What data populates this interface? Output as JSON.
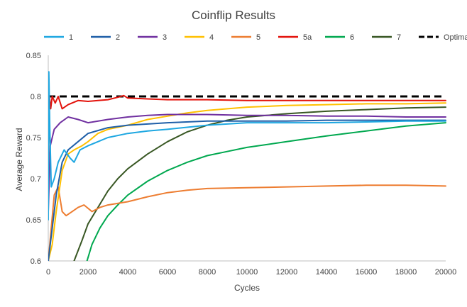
{
  "chart_data": {
    "type": "line",
    "title": "Coinflip Results",
    "xlabel": "Cycles",
    "ylabel": "Average Reward",
    "xlim": [
      0,
      20000
    ],
    "ylim": [
      0.6,
      0.85
    ],
    "xticks": [
      0,
      2000,
      4000,
      6000,
      8000,
      10000,
      12000,
      14000,
      16000,
      18000,
      20000
    ],
    "yticks": [
      0.6,
      0.65,
      0.7,
      0.75,
      0.8,
      0.85
    ],
    "xtick_labels": [
      "0",
      "2000",
      "4000",
      "6000",
      "8000",
      "10000",
      "12000",
      "14000",
      "16000",
      "18000",
      "20000"
    ],
    "ytick_labels": [
      "0.6",
      "0.65",
      "0.7",
      "0.75",
      "0.8",
      "0.85"
    ],
    "grid": false,
    "legend_position": "top",
    "series": [
      {
        "name": "1",
        "color": "#1ea7e1",
        "dash": false,
        "points": [
          [
            0,
            0.65
          ],
          [
            30,
            0.83
          ],
          [
            80,
            0.76
          ],
          [
            150,
            0.69
          ],
          [
            300,
            0.7
          ],
          [
            500,
            0.72
          ],
          [
            800,
            0.735
          ],
          [
            1100,
            0.725
          ],
          [
            1300,
            0.72
          ],
          [
            1600,
            0.735
          ],
          [
            2000,
            0.74
          ],
          [
            2500,
            0.745
          ],
          [
            3000,
            0.75
          ],
          [
            4000,
            0.755
          ],
          [
            5000,
            0.758
          ],
          [
            6000,
            0.76
          ],
          [
            8000,
            0.765
          ],
          [
            10000,
            0.768
          ],
          [
            12000,
            0.768
          ],
          [
            14000,
            0.768
          ],
          [
            16000,
            0.769
          ],
          [
            18000,
            0.77
          ],
          [
            20000,
            0.77
          ]
        ]
      },
      {
        "name": "2",
        "color": "#1f5fa8",
        "dash": false,
        "points": [
          [
            0,
            0.6
          ],
          [
            100,
            0.62
          ],
          [
            200,
            0.64
          ],
          [
            400,
            0.68
          ],
          [
            700,
            0.72
          ],
          [
            1000,
            0.735
          ],
          [
            1500,
            0.745
          ],
          [
            2000,
            0.755
          ],
          [
            3000,
            0.762
          ],
          [
            4000,
            0.765
          ],
          [
            6000,
            0.768
          ],
          [
            8000,
            0.77
          ],
          [
            10000,
            0.77
          ],
          [
            12000,
            0.77
          ],
          [
            14000,
            0.771
          ],
          [
            16000,
            0.771
          ],
          [
            18000,
            0.771
          ],
          [
            20000,
            0.771
          ]
        ]
      },
      {
        "name": "3",
        "color": "#7030a0",
        "dash": false,
        "points": [
          [
            0,
            0.66
          ],
          [
            100,
            0.74
          ],
          [
            300,
            0.76
          ],
          [
            600,
            0.768
          ],
          [
            1000,
            0.775
          ],
          [
            1500,
            0.772
          ],
          [
            2000,
            0.768
          ],
          [
            3000,
            0.772
          ],
          [
            4000,
            0.775
          ],
          [
            5000,
            0.777
          ],
          [
            6000,
            0.778
          ],
          [
            8000,
            0.778
          ],
          [
            10000,
            0.777
          ],
          [
            12000,
            0.777
          ],
          [
            14000,
            0.776
          ],
          [
            16000,
            0.776
          ],
          [
            18000,
            0.775
          ],
          [
            20000,
            0.775
          ]
        ]
      },
      {
        "name": "4",
        "color": "#ffc000",
        "dash": false,
        "points": [
          [
            0,
            0.6
          ],
          [
            200,
            0.62
          ],
          [
            400,
            0.66
          ],
          [
            700,
            0.71
          ],
          [
            1000,
            0.73
          ],
          [
            1300,
            0.735
          ],
          [
            1700,
            0.74
          ],
          [
            2000,
            0.745
          ],
          [
            2500,
            0.755
          ],
          [
            3000,
            0.76
          ],
          [
            4000,
            0.765
          ],
          [
            5000,
            0.772
          ],
          [
            6000,
            0.776
          ],
          [
            7000,
            0.78
          ],
          [
            8000,
            0.783
          ],
          [
            10000,
            0.787
          ],
          [
            12000,
            0.789
          ],
          [
            14000,
            0.79
          ],
          [
            16000,
            0.791
          ],
          [
            18000,
            0.791
          ],
          [
            20000,
            0.792
          ]
        ]
      },
      {
        "name": "5",
        "color": "#ed7d31",
        "dash": false,
        "points": [
          [
            0,
            0.6
          ],
          [
            150,
            0.64
          ],
          [
            300,
            0.68
          ],
          [
            500,
            0.69
          ],
          [
            700,
            0.66
          ],
          [
            900,
            0.655
          ],
          [
            1200,
            0.66
          ],
          [
            1500,
            0.665
          ],
          [
            1800,
            0.668
          ],
          [
            2200,
            0.66
          ],
          [
            2600,
            0.665
          ],
          [
            3000,
            0.668
          ],
          [
            4000,
            0.672
          ],
          [
            5000,
            0.678
          ],
          [
            6000,
            0.683
          ],
          [
            7000,
            0.686
          ],
          [
            8000,
            0.688
          ],
          [
            10000,
            0.689
          ],
          [
            12000,
            0.69
          ],
          [
            14000,
            0.691
          ],
          [
            16000,
            0.692
          ],
          [
            18000,
            0.692
          ],
          [
            20000,
            0.691
          ]
        ]
      },
      {
        "name": "5a",
        "color": "#e3120b",
        "dash": false,
        "points": [
          [
            0,
            0.72
          ],
          [
            60,
            0.8
          ],
          [
            120,
            0.785
          ],
          [
            200,
            0.8
          ],
          [
            350,
            0.792
          ],
          [
            500,
            0.8
          ],
          [
            700,
            0.785
          ],
          [
            1000,
            0.79
          ],
          [
            1500,
            0.795
          ],
          [
            2000,
            0.794
          ],
          [
            2500,
            0.795
          ],
          [
            3000,
            0.796
          ],
          [
            3500,
            0.799
          ],
          [
            3800,
            0.801
          ],
          [
            4000,
            0.798
          ],
          [
            5000,
            0.797
          ],
          [
            6000,
            0.796
          ],
          [
            8000,
            0.796
          ],
          [
            10000,
            0.795
          ],
          [
            12000,
            0.795
          ],
          [
            14000,
            0.795
          ],
          [
            16000,
            0.795
          ],
          [
            18000,
            0.795
          ],
          [
            20000,
            0.795
          ]
        ]
      },
      {
        "name": "6",
        "color": "#00a84f",
        "dash": false,
        "points": [
          [
            1950,
            0.6
          ],
          [
            2200,
            0.62
          ],
          [
            2600,
            0.64
          ],
          [
            3000,
            0.655
          ],
          [
            3500,
            0.668
          ],
          [
            4000,
            0.68
          ],
          [
            5000,
            0.697
          ],
          [
            6000,
            0.71
          ],
          [
            7000,
            0.72
          ],
          [
            8000,
            0.728
          ],
          [
            9000,
            0.733
          ],
          [
            10000,
            0.738
          ],
          [
            12000,
            0.745
          ],
          [
            14000,
            0.752
          ],
          [
            16000,
            0.758
          ],
          [
            18000,
            0.764
          ],
          [
            20000,
            0.768
          ]
        ]
      },
      {
        "name": "7",
        "color": "#385723",
        "dash": false,
        "points": [
          [
            1300,
            0.6
          ],
          [
            1700,
            0.625
          ],
          [
            2000,
            0.645
          ],
          [
            2500,
            0.665
          ],
          [
            3000,
            0.685
          ],
          [
            3500,
            0.7
          ],
          [
            4000,
            0.712
          ],
          [
            5000,
            0.73
          ],
          [
            6000,
            0.745
          ],
          [
            7000,
            0.757
          ],
          [
            8000,
            0.765
          ],
          [
            9000,
            0.771
          ],
          [
            10000,
            0.775
          ],
          [
            12000,
            0.779
          ],
          [
            14000,
            0.782
          ],
          [
            16000,
            0.784
          ],
          [
            18000,
            0.786
          ],
          [
            20000,
            0.787
          ]
        ]
      },
      {
        "name": "Optimal",
        "color": "#000000",
        "dash": true,
        "points": [
          [
            0,
            0.8
          ],
          [
            20000,
            0.8
          ]
        ]
      }
    ]
  }
}
